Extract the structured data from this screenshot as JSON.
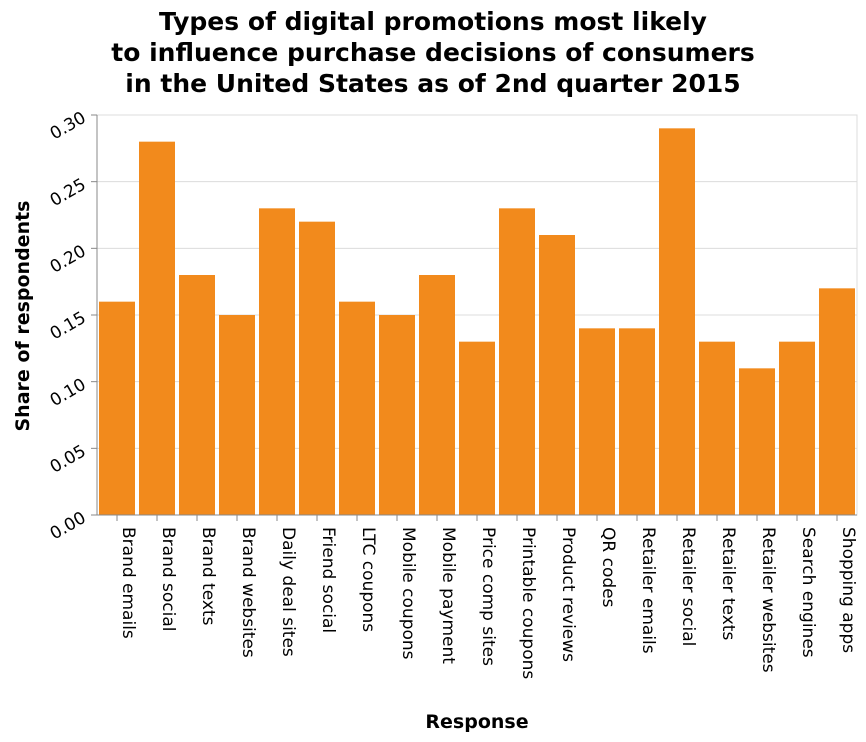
{
  "chart_data": {
    "type": "bar",
    "title_lines": [
      "Types of digital promotions most likely",
      "to influence purchase decisions of consumers",
      "in the United States as of 2nd quarter 2015"
    ],
    "xlabel": "Response",
    "ylabel": "Share of respondents",
    "categories": [
      "Brand emails",
      "Brand social",
      "Brand texts",
      "Brand websites",
      "Daily deal sites",
      "Friend social",
      "LTC coupons",
      "Mobile coupons",
      "Mobile payment",
      "Price comp sites",
      "Printable coupons",
      "Product reviews",
      "QR codes",
      "Retailer emails",
      "Retailer social",
      "Retailer texts",
      "Retailer websites",
      "Search engines",
      "Shopping apps"
    ],
    "values": [
      0.16,
      0.28,
      0.18,
      0.15,
      0.23,
      0.22,
      0.16,
      0.15,
      0.18,
      0.13,
      0.23,
      0.21,
      0.14,
      0.14,
      0.29,
      0.13,
      0.11,
      0.13,
      0.17
    ],
    "ylim": [
      0,
      0.3
    ],
    "yticks": [
      "0.00",
      "0.05",
      "0.10",
      "0.15",
      "0.20",
      "0.25",
      "0.30"
    ],
    "bar_color": "#f28a1c",
    "grid": true
  }
}
